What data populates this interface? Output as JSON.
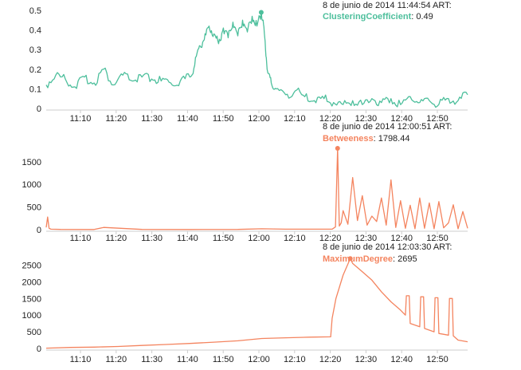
{
  "colors": {
    "panel1_line": "#4dbf9c",
    "panel2_line": "#f4845f",
    "panel3_line": "#f4845f",
    "axis": "#cccccc",
    "text": "#222222"
  },
  "chart_data": [
    {
      "type": "line",
      "metric": "ClusteringCoefficient",
      "info": {
        "timestamp": "8 de junio de 2014 11:44:54 ART:",
        "metric": "ClusteringCoefficient",
        "value": "0.49"
      },
      "x_ticks": [
        "11:10",
        "11:20",
        "11:30",
        "11:40",
        "11:50",
        "12:00",
        "12:10",
        "12:20",
        "12:30",
        "12:40",
        "12:50"
      ],
      "y_ticks": [
        "0",
        "0.1",
        "0.2",
        "0.3",
        "0.4",
        "0.5"
      ],
      "ylim": [
        0,
        0.5
      ],
      "xlim_minutes": [
        0,
        88
      ],
      "series": [
        {
          "x": [
            0,
            2,
            4,
            6,
            8,
            10,
            12,
            14,
            16,
            18,
            20,
            22,
            24,
            26,
            28,
            30,
            31,
            32,
            33,
            34,
            35,
            36,
            37,
            38,
            39,
            40,
            41,
            42,
            43,
            44,
            44.9,
            45.3,
            45.8,
            46.3,
            47,
            48,
            50,
            52,
            54,
            56,
            58,
            60,
            62,
            64,
            66,
            68,
            70,
            72,
            74,
            76,
            78,
            80,
            82,
            84,
            86,
            88
          ],
          "y": [
            0.12,
            0.17,
            0.15,
            0.11,
            0.16,
            0.13,
            0.2,
            0.12,
            0.17,
            0.14,
            0.16,
            0.15,
            0.14,
            0.13,
            0.14,
            0.16,
            0.22,
            0.32,
            0.35,
            0.42,
            0.38,
            0.33,
            0.41,
            0.36,
            0.44,
            0.37,
            0.45,
            0.39,
            0.47,
            0.42,
            0.49,
            0.45,
            0.3,
            0.18,
            0.13,
            0.1,
            0.07,
            0.09,
            0.06,
            0.04,
            0.05,
            0.03,
            0.02,
            0.04,
            0.02,
            0.05,
            0.03,
            0.05,
            0.02,
            0.06,
            0.03,
            0.04,
            0.02,
            0.05,
            0.04,
            0.07
          ],
          "marker": {
            "x": 44.9,
            "y": 0.49
          }
        }
      ]
    },
    {
      "type": "line",
      "metric": "Betweeness",
      "info": {
        "timestamp": "8 de junio de 2014 12:00:51 ART:",
        "metric": "Betweeness",
        "value": "1798.44"
      },
      "x_ticks": [
        "11:10",
        "11:20",
        "11:30",
        "11:40",
        "11:50",
        "12:00",
        "12:10",
        "12:20",
        "12:30",
        "12:40",
        "12:50"
      ],
      "y_ticks": [
        "0",
        "500",
        "1000",
        "1500"
      ],
      "ylim": [
        0,
        1850
      ],
      "xlim_minutes": [
        0,
        88
      ],
      "series": [
        {
          "x": [
            0,
            0.3,
            0.6,
            1,
            3,
            10,
            12,
            20,
            30,
            40,
            45,
            50,
            59.7,
            60.4,
            60.85,
            61.2,
            61.6,
            62,
            63,
            64,
            65,
            66,
            67,
            68,
            69,
            70,
            71,
            72,
            73,
            74,
            75,
            76,
            77,
            78,
            79,
            80,
            81,
            82,
            83,
            84,
            85,
            86,
            87,
            88
          ],
          "y": [
            50,
            280,
            30,
            10,
            5,
            3,
            50,
            5,
            3,
            5,
            20,
            10,
            10,
            60,
            1798,
            80,
            150,
            420,
            120,
            1150,
            200,
            750,
            100,
            300,
            180,
            700,
            100,
            1100,
            50,
            640,
            30,
            540,
            20,
            700,
            30,
            590,
            20,
            620,
            40,
            150,
            550,
            20,
            400,
            30
          ],
          "marker": {
            "x": 60.85,
            "y": 1798
          }
        }
      ]
    },
    {
      "type": "line",
      "metric": "MaximumDegree",
      "info": {
        "timestamp": "8 de junio de 2014 12:03:30 ART:",
        "metric": "MaximumDegree",
        "value": "2695"
      },
      "x_ticks": [
        "11:10",
        "11:20",
        "11:30",
        "11:40",
        "11:50",
        "12:00",
        "12:10",
        "12:20",
        "12:30",
        "12:40",
        "12:50"
      ],
      "y_ticks": [
        "0",
        "500",
        "1000",
        "1500",
        "2000",
        "2500"
      ],
      "ylim": [
        0,
        2750
      ],
      "xlim_minutes": [
        0,
        88
      ],
      "series": [
        {
          "x": [
            0,
            5,
            10,
            15,
            20,
            25,
            30,
            35,
            40,
            45,
            50,
            55,
            59.4,
            59.7,
            60.5,
            62,
            63.5,
            64,
            66,
            68,
            70,
            72,
            74,
            75,
            75.2,
            75.8,
            76,
            78,
            78.2,
            78.8,
            79,
            81,
            81.2,
            81.8,
            82,
            84,
            84.2,
            84.8,
            85,
            86,
            88
          ],
          "y": [
            10,
            30,
            40,
            60,
            90,
            120,
            150,
            190,
            230,
            300,
            320,
            340,
            350,
            900,
            1500,
            2200,
            2695,
            2550,
            2300,
            2050,
            1700,
            1400,
            1150,
            1000,
            1580,
            1580,
            750,
            650,
            1550,
            1550,
            600,
            500,
            1520,
            1520,
            450,
            400,
            1500,
            1500,
            380,
            250,
            200
          ],
          "marker": {
            "x": 63.5,
            "y": 2695
          }
        }
      ]
    }
  ]
}
